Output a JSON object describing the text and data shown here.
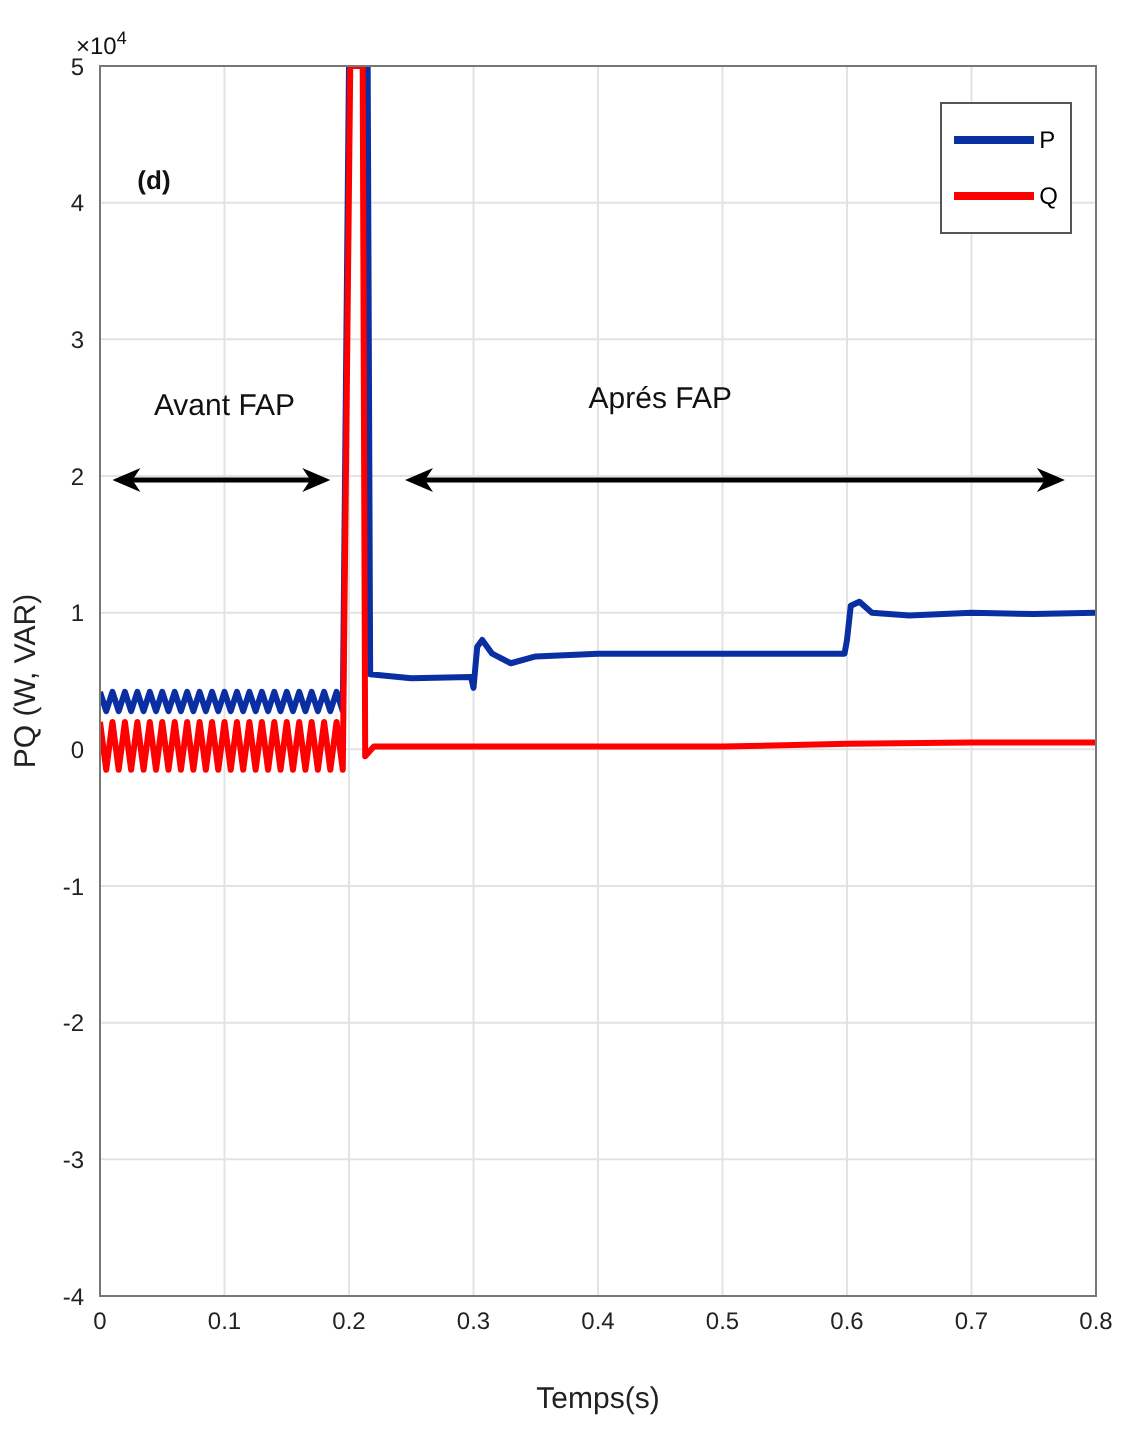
{
  "chart_data": {
    "type": "line",
    "xlabel": "Temps(s)",
    "ylabel": "PQ (W, VAR)",
    "annotations": [
      "×10$^{4}$",
      "(d)",
      "Avant FAP",
      "Aprés FAP"
    ],
    "xlim": [
      0,
      0.8
    ],
    "xticks": [
      0,
      0.1,
      0.2,
      0.3,
      0.4,
      0.5,
      0.6,
      0.7,
      0.8
    ],
    "ylim": [
      -4,
      5
    ],
    "yticks": [
      -4,
      -3,
      -2,
      -1,
      0,
      1,
      2,
      3,
      4,
      5
    ],
    "grid": true,
    "legend": "top right",
    "marker": "none",
    "line_style": "solid",
    "series": [
      {
        "name": "P",
        "color": "#0a2fa3",
        "x": [
          0,
          0.005,
          0.01,
          0.015,
          0.02,
          0.025,
          0.03,
          0.035,
          0.04,
          0.045,
          0.05,
          0.055,
          0.06,
          0.065,
          0.07,
          0.075,
          0.08,
          0.085,
          0.09,
          0.095,
          0.1,
          0.105,
          0.11,
          0.115,
          0.12,
          0.125,
          0.13,
          0.135,
          0.14,
          0.145,
          0.15,
          0.155,
          0.16,
          0.165,
          0.17,
          0.175,
          0.18,
          0.185,
          0.19,
          0.195,
          0.2,
          0.215,
          0.217,
          0.25,
          0.298,
          0.3,
          0.303,
          0.307,
          0.315,
          0.33,
          0.35,
          0.4,
          0.45,
          0.5,
          0.55,
          0.598,
          0.6,
          0.603,
          0.61,
          0.62,
          0.65,
          0.7,
          0.75,
          0.8
        ],
        "values": [
          0.42,
          0.28,
          0.42,
          0.28,
          0.42,
          0.28,
          0.42,
          0.28,
          0.42,
          0.28,
          0.42,
          0.28,
          0.42,
          0.28,
          0.42,
          0.28,
          0.42,
          0.28,
          0.42,
          0.28,
          0.42,
          0.28,
          0.42,
          0.28,
          0.42,
          0.28,
          0.42,
          0.28,
          0.42,
          0.28,
          0.42,
          0.28,
          0.42,
          0.28,
          0.42,
          0.28,
          0.42,
          0.28,
          0.42,
          0.28,
          5,
          5,
          0.55,
          0.52,
          0.53,
          0.45,
          0.75,
          0.8,
          0.7,
          0.63,
          0.68,
          0.7,
          0.7,
          0.7,
          0.7,
          0.7,
          0.8,
          1.05,
          1.08,
          1,
          0.98,
          1,
          0.99,
          1
        ]
      },
      {
        "name": "Q",
        "color": "#ff0000",
        "x": [
          0,
          0.005,
          0.01,
          0.015,
          0.02,
          0.025,
          0.03,
          0.035,
          0.04,
          0.045,
          0.05,
          0.055,
          0.06,
          0.065,
          0.07,
          0.075,
          0.08,
          0.085,
          0.09,
          0.095,
          0.1,
          0.105,
          0.11,
          0.115,
          0.12,
          0.125,
          0.13,
          0.135,
          0.14,
          0.145,
          0.15,
          0.155,
          0.16,
          0.165,
          0.17,
          0.175,
          0.18,
          0.185,
          0.19,
          0.195,
          0.201,
          0.211,
          0.213,
          0.22,
          0.3,
          0.4,
          0.5,
          0.6,
          0.7,
          0.8
        ],
        "values": [
          0.2,
          -0.15,
          0.2,
          -0.15,
          0.2,
          -0.15,
          0.2,
          -0.15,
          0.2,
          -0.15,
          0.2,
          -0.15,
          0.2,
          -0.15,
          0.2,
          -0.15,
          0.2,
          -0.15,
          0.2,
          -0.15,
          0.2,
          -0.15,
          0.2,
          -0.15,
          0.2,
          -0.15,
          0.2,
          -0.15,
          0.2,
          -0.15,
          0.2,
          -0.15,
          0.2,
          -0.15,
          0.2,
          -0.15,
          0.2,
          -0.15,
          0.2,
          -0.15,
          5,
          5,
          -0.05,
          0.02,
          0.02,
          0.02,
          0.02,
          0.04,
          0.05,
          0.05
        ]
      }
    ]
  }
}
